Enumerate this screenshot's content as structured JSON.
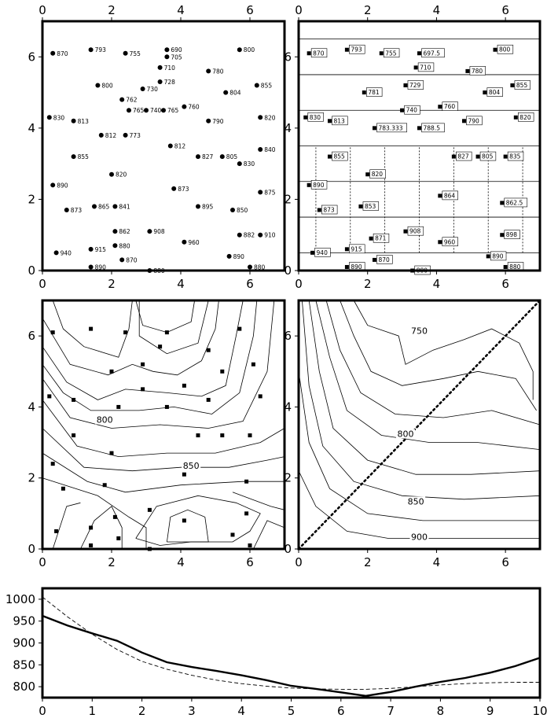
{
  "chart_data": [
    {
      "type": "scatter",
      "panel": "top-left",
      "xlim": [
        0,
        7
      ],
      "ylim": [
        0,
        7
      ],
      "xticks": [
        0,
        2,
        4,
        6
      ],
      "yticks": [
        0,
        2,
        4,
        6
      ],
      "points": [
        {
          "x": 0.3,
          "y": 6.1,
          "label": "870"
        },
        {
          "x": 1.4,
          "y": 6.2,
          "label": "793"
        },
        {
          "x": 2.4,
          "y": 6.1,
          "label": "755"
        },
        {
          "x": 3.6,
          "y": 6.2,
          "label": "690"
        },
        {
          "x": 3.6,
          "y": 6.0,
          "label": "705"
        },
        {
          "x": 3.4,
          "y": 5.7,
          "label": "710"
        },
        {
          "x": 4.8,
          "y": 5.6,
          "label": "780"
        },
        {
          "x": 5.7,
          "y": 6.2,
          "label": "800"
        },
        {
          "x": 1.6,
          "y": 5.2,
          "label": "800"
        },
        {
          "x": 3.4,
          "y": 5.3,
          "label": "728"
        },
        {
          "x": 2.9,
          "y": 5.1,
          "label": "730"
        },
        {
          "x": 5.3,
          "y": 5.0,
          "label": "804"
        },
        {
          "x": 6.2,
          "y": 5.2,
          "label": "855"
        },
        {
          "x": 2.3,
          "y": 4.8,
          "label": "762"
        },
        {
          "x": 2.5,
          "y": 4.5,
          "label": "765"
        },
        {
          "x": 3.0,
          "y": 4.5,
          "label": "740"
        },
        {
          "x": 3.5,
          "y": 4.5,
          "label": "765"
        },
        {
          "x": 4.1,
          "y": 4.6,
          "label": "760"
        },
        {
          "x": 0.2,
          "y": 4.3,
          "label": "830"
        },
        {
          "x": 0.9,
          "y": 4.2,
          "label": "813"
        },
        {
          "x": 4.8,
          "y": 4.2,
          "label": "790"
        },
        {
          "x": 6.3,
          "y": 4.3,
          "label": "820"
        },
        {
          "x": 1.7,
          "y": 3.8,
          "label": "812"
        },
        {
          "x": 2.4,
          "y": 3.8,
          "label": "773"
        },
        {
          "x": 3.7,
          "y": 3.5,
          "label": "812"
        },
        {
          "x": 6.3,
          "y": 3.4,
          "label": "840"
        },
        {
          "x": 0.9,
          "y": 3.2,
          "label": "855"
        },
        {
          "x": 4.5,
          "y": 3.2,
          "label": "827"
        },
        {
          "x": 5.2,
          "y": 3.2,
          "label": "805"
        },
        {
          "x": 5.7,
          "y": 3.0,
          "label": "830"
        },
        {
          "x": 2.0,
          "y": 2.7,
          "label": "820"
        },
        {
          "x": 0.3,
          "y": 2.4,
          "label": "890"
        },
        {
          "x": 3.8,
          "y": 2.3,
          "label": "873"
        },
        {
          "x": 6.3,
          "y": 2.2,
          "label": "875"
        },
        {
          "x": 0.7,
          "y": 1.7,
          "label": "873"
        },
        {
          "x": 1.5,
          "y": 1.8,
          "label": "865"
        },
        {
          "x": 2.1,
          "y": 1.8,
          "label": "841"
        },
        {
          "x": 4.5,
          "y": 1.8,
          "label": "895"
        },
        {
          "x": 5.5,
          "y": 1.7,
          "label": "850"
        },
        {
          "x": 2.1,
          "y": 1.1,
          "label": "862"
        },
        {
          "x": 3.1,
          "y": 1.1,
          "label": "908"
        },
        {
          "x": 5.7,
          "y": 1.0,
          "label": "882"
        },
        {
          "x": 6.3,
          "y": 1.0,
          "label": "910"
        },
        {
          "x": 2.1,
          "y": 0.7,
          "label": "880"
        },
        {
          "x": 4.1,
          "y": 0.8,
          "label": "960"
        },
        {
          "x": 0.4,
          "y": 0.5,
          "label": "940"
        },
        {
          "x": 1.4,
          "y": 0.6,
          "label": "915"
        },
        {
          "x": 2.3,
          "y": 0.3,
          "label": "870"
        },
        {
          "x": 5.4,
          "y": 0.4,
          "label": "890"
        },
        {
          "x": 1.4,
          "y": 0.1,
          "label": "890"
        },
        {
          "x": 3.1,
          "y": 0.0,
          "label": "880"
        },
        {
          "x": 6.0,
          "y": 0.1,
          "label": "880"
        }
      ]
    },
    {
      "type": "scatter",
      "panel": "top-right",
      "xlim": [
        0,
        7
      ],
      "ylim": [
        0,
        7
      ],
      "xticks": [
        0,
        2,
        4,
        6
      ],
      "yticks": [
        0,
        2,
        4,
        6
      ],
      "grid_y": [
        0.5,
        1.5,
        2.5,
        3.5,
        4.5,
        5.5,
        6.5
      ],
      "grid_x": [
        0.5,
        1.5,
        2.5,
        3.5,
        4.5,
        5.5,
        6.5
      ],
      "points": [
        {
          "x": 0.3,
          "y": 6.1,
          "label": "870"
        },
        {
          "x": 1.4,
          "y": 6.2,
          "label": "793"
        },
        {
          "x": 2.4,
          "y": 6.1,
          "label": "755"
        },
        {
          "x": 3.5,
          "y": 6.1,
          "label": "697.5"
        },
        {
          "x": 3.4,
          "y": 5.7,
          "label": "710"
        },
        {
          "x": 4.9,
          "y": 5.6,
          "label": "780"
        },
        {
          "x": 5.7,
          "y": 6.2,
          "label": "800"
        },
        {
          "x": 3.1,
          "y": 5.2,
          "label": "729"
        },
        {
          "x": 1.9,
          "y": 5.0,
          "label": "781"
        },
        {
          "x": 5.4,
          "y": 5.0,
          "label": "804"
        },
        {
          "x": 6.2,
          "y": 5.2,
          "label": "855"
        },
        {
          "x": 4.1,
          "y": 4.6,
          "label": "760"
        },
        {
          "x": 3.0,
          "y": 4.5,
          "label": "740"
        },
        {
          "x": 0.2,
          "y": 4.3,
          "label": "830"
        },
        {
          "x": 0.9,
          "y": 4.2,
          "label": "813"
        },
        {
          "x": 2.2,
          "y": 4.0,
          "label": "783.333"
        },
        {
          "x": 3.5,
          "y": 4.0,
          "label": "788.5"
        },
        {
          "x": 4.8,
          "y": 4.2,
          "label": "790"
        },
        {
          "x": 6.3,
          "y": 4.3,
          "label": "820"
        },
        {
          "x": 0.9,
          "y": 3.2,
          "label": "855"
        },
        {
          "x": 4.5,
          "y": 3.2,
          "label": "827"
        },
        {
          "x": 5.2,
          "y": 3.2,
          "label": "805"
        },
        {
          "x": 6.0,
          "y": 3.2,
          "label": "835"
        },
        {
          "x": 2.0,
          "y": 2.7,
          "label": "820"
        },
        {
          "x": 0.3,
          "y": 2.4,
          "label": "890"
        },
        {
          "x": 4.1,
          "y": 2.1,
          "label": "864"
        },
        {
          "x": 1.8,
          "y": 1.8,
          "label": "853"
        },
        {
          "x": 5.9,
          "y": 1.9,
          "label": "862.5"
        },
        {
          "x": 0.6,
          "y": 1.7,
          "label": "873"
        },
        {
          "x": 3.1,
          "y": 1.1,
          "label": "908"
        },
        {
          "x": 2.1,
          "y": 0.9,
          "label": "871"
        },
        {
          "x": 4.1,
          "y": 0.8,
          "label": "960"
        },
        {
          "x": 5.9,
          "y": 1.0,
          "label": "898"
        },
        {
          "x": 0.4,
          "y": 0.5,
          "label": "940"
        },
        {
          "x": 1.4,
          "y": 0.6,
          "label": "915"
        },
        {
          "x": 2.2,
          "y": 0.3,
          "label": "870"
        },
        {
          "x": 5.5,
          "y": 0.4,
          "label": "890"
        },
        {
          "x": 1.4,
          "y": 0.1,
          "label": "890"
        },
        {
          "x": 3.3,
          "y": 0.0,
          "label": "880"
        },
        {
          "x": 6.0,
          "y": 0.1,
          "label": "880"
        }
      ]
    },
    {
      "type": "contour",
      "panel": "middle-left",
      "xlim": [
        0,
        7
      ],
      "ylim": [
        0,
        7
      ],
      "xticks": [
        0,
        2,
        4,
        6
      ],
      "yticks": [
        0,
        2,
        4,
        6
      ],
      "contour_labels": [
        {
          "text": "800",
          "x": 1.8,
          "y": 3.6
        },
        {
          "text": "850",
          "x": 4.3,
          "y": 2.3
        }
      ],
      "stations": [
        [
          0.3,
          6.1
        ],
        [
          1.4,
          6.2
        ],
        [
          2.4,
          6.1
        ],
        [
          3.6,
          6.1
        ],
        [
          3.4,
          5.7
        ],
        [
          4.8,
          5.6
        ],
        [
          5.7,
          6.2
        ],
        [
          2.0,
          5.0
        ],
        [
          2.9,
          5.2
        ],
        [
          5.2,
          5.0
        ],
        [
          6.1,
          5.2
        ],
        [
          2.2,
          4.0
        ],
        [
          2.9,
          4.5
        ],
        [
          3.6,
          4.0
        ],
        [
          4.1,
          4.6
        ],
        [
          0.2,
          4.3
        ],
        [
          0.9,
          4.2
        ],
        [
          4.8,
          4.2
        ],
        [
          6.3,
          4.3
        ],
        [
          0.9,
          3.2
        ],
        [
          4.5,
          3.2
        ],
        [
          5.2,
          3.2
        ],
        [
          6.0,
          3.2
        ],
        [
          2.0,
          2.7
        ],
        [
          0.3,
          2.4
        ],
        [
          4.1,
          2.1
        ],
        [
          1.8,
          1.8
        ],
        [
          5.9,
          1.9
        ],
        [
          0.6,
          1.7
        ],
        [
          3.1,
          1.1
        ],
        [
          2.1,
          0.9
        ],
        [
          4.1,
          0.8
        ],
        [
          5.9,
          1.0
        ],
        [
          0.4,
          0.5
        ],
        [
          1.4,
          0.6
        ],
        [
          2.2,
          0.3
        ],
        [
          5.5,
          0.4
        ],
        [
          1.4,
          0.1
        ],
        [
          3.1,
          0.0
        ],
        [
          6.0,
          0.1
        ]
      ]
    },
    {
      "type": "contour",
      "panel": "middle-right",
      "xlim": [
        0,
        7
      ],
      "ylim": [
        0,
        7
      ],
      "xticks": [
        0,
        2,
        4,
        6
      ],
      "yticks": [
        0,
        2,
        4,
        6
      ],
      "contour_labels": [
        {
          "text": "750",
          "x": 3.5,
          "y": 6.1
        },
        {
          "text": "800",
          "x": 3.1,
          "y": 3.2
        },
        {
          "text": "850",
          "x": 3.4,
          "y": 1.3
        },
        {
          "text": "900",
          "x": 3.5,
          "y": 0.3
        }
      ],
      "track": {
        "x": [
          0,
          7
        ],
        "y": [
          0,
          7
        ]
      }
    },
    {
      "type": "line",
      "panel": "bottom",
      "xlim": [
        0,
        10
      ],
      "ylim": [
        775,
        1025
      ],
      "xticks": [
        0,
        1,
        2,
        3,
        4,
        5,
        6,
        7,
        8,
        9,
        10
      ],
      "yticks": [
        800,
        850,
        900,
        950,
        1000
      ],
      "series": [
        {
          "style": "solid",
          "x": [
            0,
            0.5,
            1,
            1.5,
            2,
            2.5,
            3,
            3.5,
            4,
            4.5,
            5,
            5.5,
            6,
            6.5,
            7,
            7.5,
            8,
            8.5,
            9,
            9.5,
            10
          ],
          "y": [
            962,
            940,
            922,
            905,
            878,
            856,
            845,
            836,
            826,
            815,
            802,
            795,
            787,
            779,
            788,
            800,
            811,
            820,
            832,
            847,
            866
          ]
        },
        {
          "style": "dashed",
          "x": [
            0,
            0.5,
            1,
            1.5,
            2,
            2.5,
            3,
            3.5,
            4,
            4.5,
            5,
            5.5,
            6,
            6.5,
            7,
            7.5,
            8,
            8.5,
            9,
            9.5,
            10
          ],
          "y": [
            1005,
            960,
            920,
            885,
            858,
            840,
            826,
            815,
            807,
            801,
            797,
            795,
            794,
            794,
            796,
            800,
            804,
            807,
            809,
            810,
            810
          ]
        }
      ]
    }
  ]
}
